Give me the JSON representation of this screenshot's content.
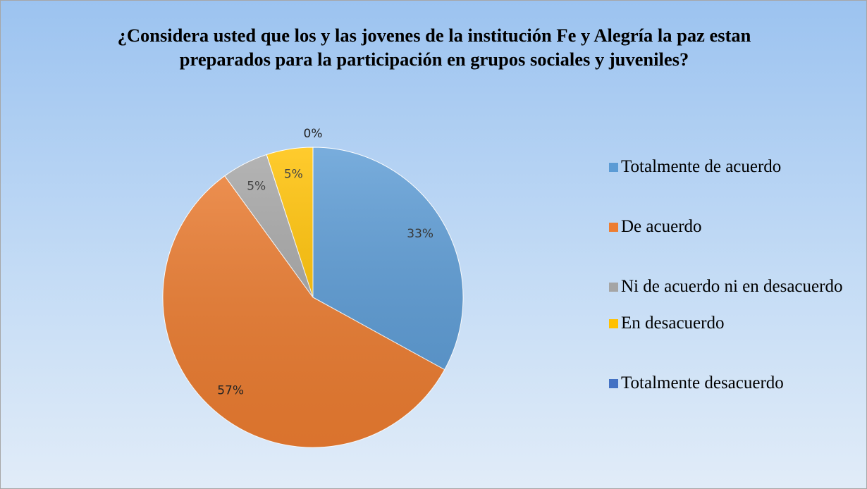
{
  "chart_data": {
    "type": "pie",
    "title": "¿Considera usted que los y las jovenes de la institución Fe y Alegría la paz estan preparados para la participación en grupos sociales y juveniles?",
    "categories": [
      "Totalmente de acuerdo",
      "De acuerdo",
      "Ni de acuerdo ni en desacuerdo",
      "En desacuerdo",
      "Totalmente desacuerdo"
    ],
    "values": [
      33,
      57,
      5,
      5,
      0
    ],
    "value_labels": [
      "33%",
      "57%",
      "5%",
      "5%",
      "0%"
    ],
    "colors": [
      "#5b9bd5",
      "#ed7d31",
      "#a5a5a5",
      "#ffc000",
      "#4472c4"
    ],
    "legend": "right"
  }
}
